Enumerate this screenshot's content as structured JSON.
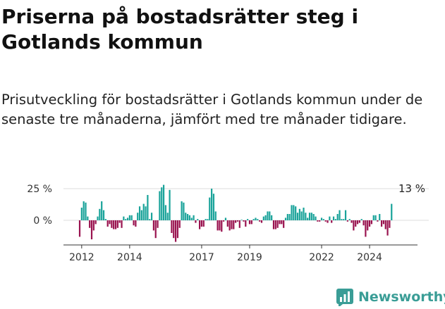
{
  "title": "Priserna på bostadsrätter steg i Gotlands kommun",
  "subtitle": "Prisutveckling för bostadsrätter i Gotlands kommun under de senaste tre månaderna, jämfört med tre månader tidigare.",
  "last_value_label": "13 %",
  "brand": {
    "name": "Newsworthy",
    "color": "#3a9d96"
  },
  "colors": {
    "positive": "#1aa39a",
    "negative": "#99134f",
    "axis": "#333333",
    "grid": "#dddddd"
  },
  "chart_data": {
    "type": "bar",
    "y_ticks": [
      {
        "value": 25,
        "label": "25 %"
      },
      {
        "value": 0,
        "label": "0 %"
      }
    ],
    "ylim": [
      -17,
      28
    ],
    "x_ticks": [
      "2012",
      "2014",
      "2017",
      "2019",
      "2022",
      "2024"
    ],
    "x_tick_positions": [
      2012.0,
      2014.0,
      2017.0,
      2019.0,
      2022.0,
      2024.0
    ],
    "series": [
      {
        "values": [
          -13,
          10,
          15,
          14,
          3,
          -6,
          -15,
          -8,
          -3,
          3,
          9,
          15,
          8,
          1,
          -5,
          -3,
          -6,
          -7,
          -7,
          -6,
          -2,
          -6,
          3,
          1,
          2,
          4,
          4,
          -4,
          -5,
          6,
          11,
          8,
          13,
          11,
          20,
          1,
          6,
          -8,
          -14,
          -6,
          23,
          26,
          28,
          12,
          6,
          24,
          -10,
          -14,
          -17,
          -14,
          -6,
          15,
          14,
          6,
          5,
          4,
          2,
          4,
          -2,
          1,
          -7,
          -5,
          -5,
          1,
          1,
          18,
          25,
          21,
          7,
          -8,
          -8,
          -9,
          -1,
          2,
          -5,
          -8,
          -7,
          -7,
          -2,
          -1,
          -6,
          0,
          -1,
          -5,
          1,
          -3,
          -3,
          1,
          2,
          1,
          -1,
          -2,
          3,
          4,
          7,
          7,
          4,
          -7,
          -7,
          -6,
          -3,
          -3,
          -6,
          2,
          5,
          5,
          12,
          12,
          11,
          6,
          9,
          7,
          10,
          6,
          2,
          6,
          6,
          5,
          3,
          -1,
          -1,
          2,
          1,
          -1,
          -2,
          3,
          -2,
          3,
          1,
          5,
          8,
          1,
          1,
          8,
          -1,
          1,
          -2,
          -8,
          -5,
          -3,
          -2,
          1,
          -4,
          -13,
          -8,
          -5,
          -3,
          4,
          4,
          -1,
          5,
          -5,
          -3,
          -7,
          -12,
          -6,
          13
        ],
        "start_year": 2011.917,
        "months_per_step": 1
      }
    ]
  }
}
